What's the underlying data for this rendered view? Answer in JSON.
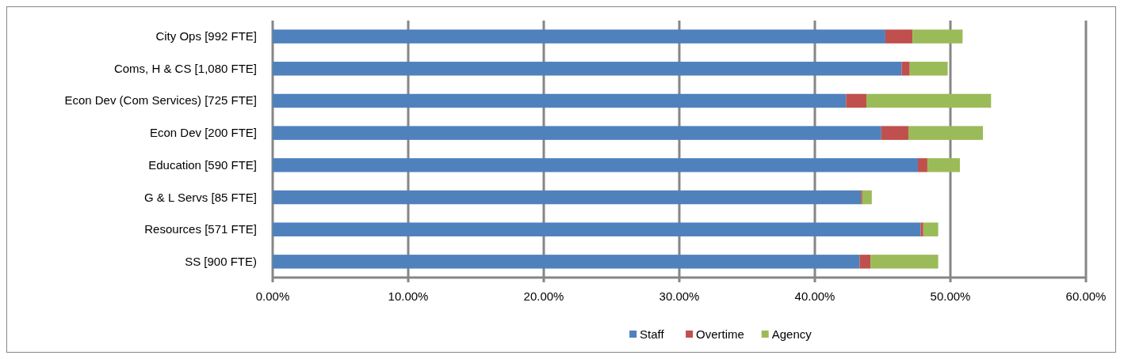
{
  "chart_data": {
    "type": "bar",
    "orientation": "horizontal",
    "stacked": true,
    "categories": [
      "City Ops [992 FTE]",
      "Coms, H & CS [1,080 FTE]",
      "Econ Dev (Com Services) [725 FTE]",
      "Econ Dev [200 FTE]",
      "Education [590 FTE]",
      "G & L Servs [85 FTE]",
      "Resources [571 FTE]",
      "SS [900 FTE)"
    ],
    "series": [
      {
        "name": "Staff",
        "color": "#4f81bd",
        "values": [
          45.2,
          46.4,
          42.3,
          44.9,
          47.6,
          43.4,
          47.8,
          43.3
        ]
      },
      {
        "name": "Overtime",
        "color": "#c0504d",
        "values": [
          2.0,
          0.6,
          1.5,
          2.0,
          0.7,
          0.1,
          0.2,
          0.8
        ]
      },
      {
        "name": "Agency",
        "color": "#9bbb59",
        "values": [
          3.7,
          2.8,
          9.2,
          5.5,
          2.4,
          0.7,
          1.1,
          5.0
        ]
      }
    ],
    "xlim": [
      0,
      60
    ],
    "xticks": [
      {
        "value": 0,
        "label": "0.00%"
      },
      {
        "value": 10,
        "label": "10.00%"
      },
      {
        "value": 20,
        "label": "20.00%"
      },
      {
        "value": 30,
        "label": "30.00%"
      },
      {
        "value": 40,
        "label": "40.00%"
      },
      {
        "value": 50,
        "label": "50.00%"
      },
      {
        "value": 60,
        "label": "60.00%"
      }
    ],
    "grid": "x",
    "legend": "bottom"
  }
}
